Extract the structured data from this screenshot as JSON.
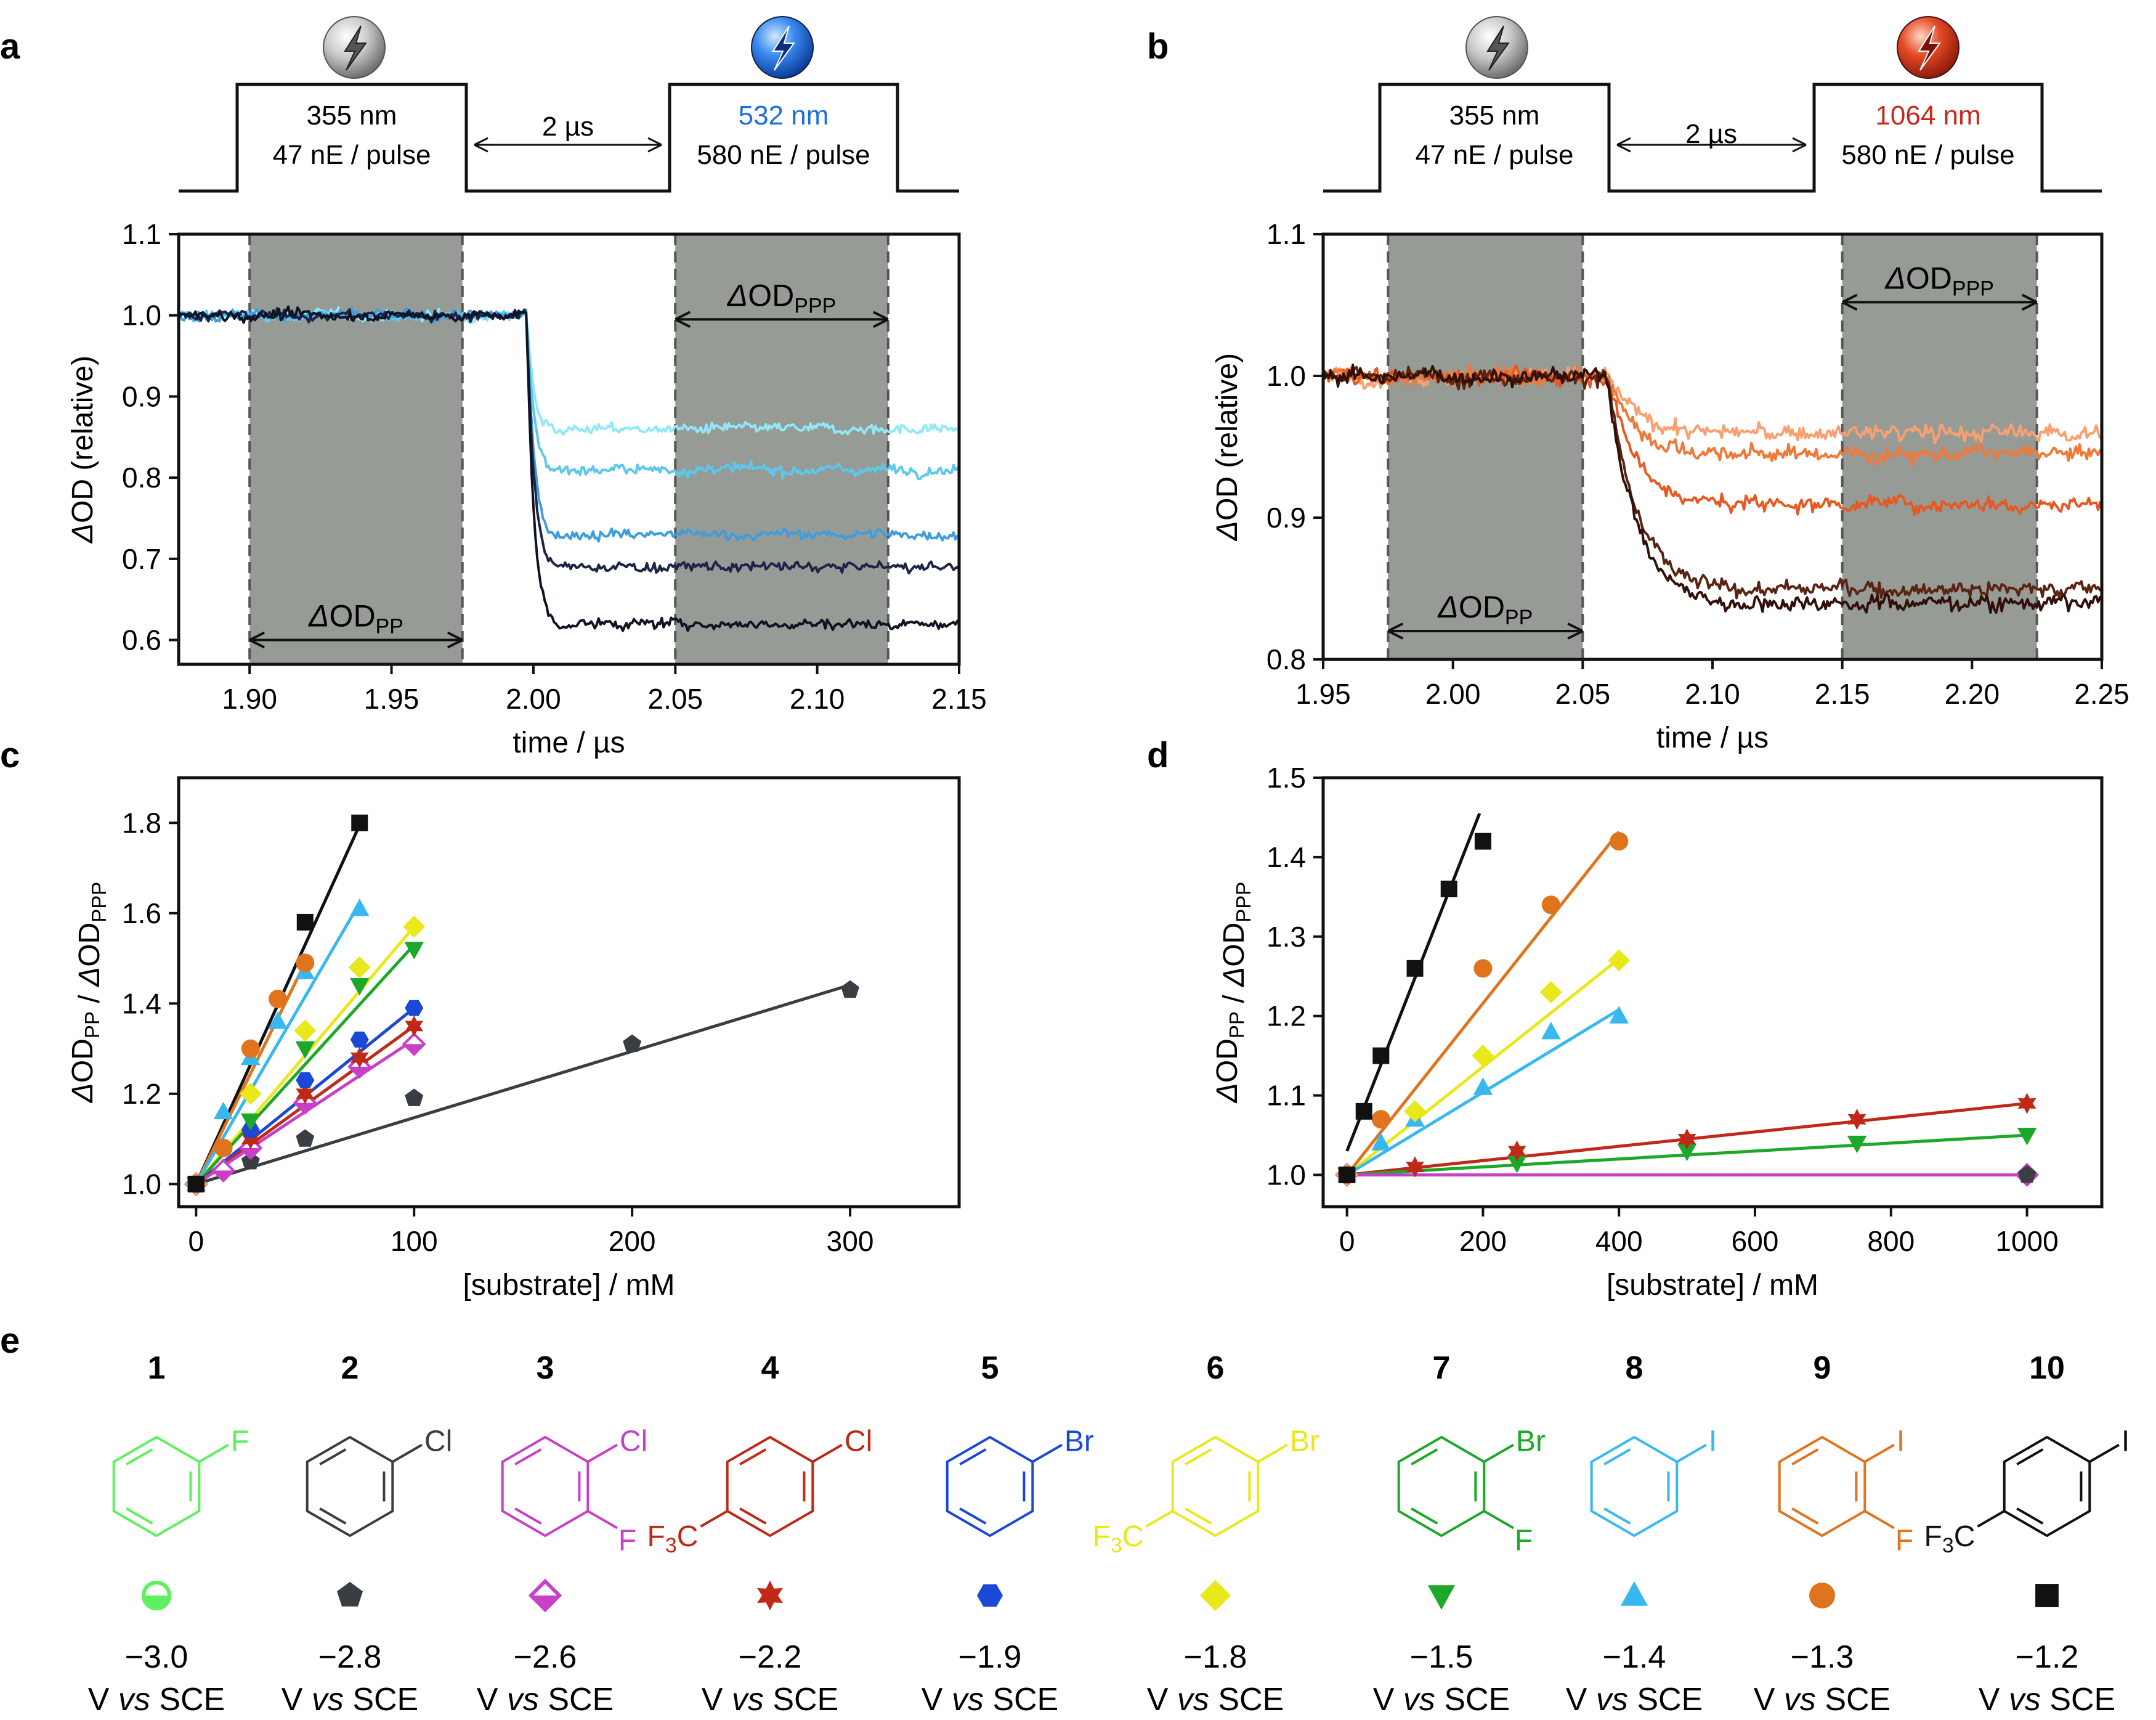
{
  "panel_letters": [
    "a",
    "b",
    "c",
    "d",
    "e"
  ],
  "pulse_a": {
    "pulse1_wl": "355 nm",
    "pulse1_energy": "47 nE / pulse",
    "delay": "2 µs",
    "pulse2_wl": "532 nm",
    "pulse2_energy": "580 nE / pulse",
    "pulse2_color": "#1d6fe0",
    "sphere2_color": "#1f6fe6"
  },
  "pulse_b": {
    "pulse1_wl": "355 nm",
    "pulse1_energy": "47 nE / pulse",
    "delay": "2 µs",
    "pulse2_wl": "1064 nm",
    "pulse2_energy": "580 nE / pulse",
    "pulse2_color": "#c8281c",
    "sphere2_color": "#d4301c"
  },
  "chart_data": [
    {
      "id": "a",
      "type": "line",
      "xlabel": "time / µs",
      "ylabel": "ΔOD (relative)",
      "xlim": [
        1.875,
        2.15
      ],
      "ylim": [
        0.57,
        1.1
      ],
      "xticks": [
        1.9,
        1.95,
        2.0,
        2.05,
        2.1,
        2.15
      ],
      "xtick_labels": [
        "1.90",
        "1.95",
        "2.00",
        "2.05",
        "2.10",
        "2.15"
      ],
      "yticks": [
        0.6,
        0.7,
        0.8,
        0.9,
        1.0,
        1.1
      ],
      "ytick_labels": [
        "0.6",
        "0.7",
        "0.8",
        "0.9",
        "1.0",
        "1.1"
      ],
      "shaded_regions": [
        [
          1.9,
          1.975
        ],
        [
          2.05,
          2.125
        ]
      ],
      "annotations": [
        "ΔOD_PP",
        "ΔOD_PPP"
      ],
      "drop_time": 2.0,
      "series": [
        {
          "name": "trace 1",
          "color": "#90e8f8",
          "level_after": 0.86
        },
        {
          "name": "trace 2",
          "color": "#5cc8ec",
          "level_after": 0.81
        },
        {
          "name": "trace 3",
          "color": "#3c9ee0",
          "level_after": 0.73
        },
        {
          "name": "trace 4",
          "color": "#1e2448",
          "level_after": 0.69
        },
        {
          "name": "trace 5",
          "color": "#0f1424",
          "level_after": 0.62
        }
      ]
    },
    {
      "id": "b",
      "type": "line",
      "xlabel": "time / µs",
      "ylabel": "ΔOD (relative)",
      "xlim": [
        1.95,
        2.25
      ],
      "ylim": [
        0.8,
        1.1
      ],
      "xticks": [
        1.95,
        2.0,
        2.05,
        2.1,
        2.15,
        2.2,
        2.25
      ],
      "xtick_labels": [
        "1.95",
        "2.00",
        "2.05",
        "2.10",
        "2.15",
        "2.20",
        "2.25"
      ],
      "yticks": [
        0.8,
        0.9,
        1.0,
        1.1
      ],
      "ytick_labels": [
        "0.8",
        "0.9",
        "1.0",
        "1.1"
      ],
      "shaded_regions": [
        [
          1.975,
          2.05
        ],
        [
          2.15,
          2.225
        ]
      ],
      "annotations": [
        "ΔOD_PP",
        "ΔOD_PPP"
      ],
      "drop_time": 2.07,
      "series": [
        {
          "name": "trace 1",
          "color": "#f8a070",
          "level_after": 0.96
        },
        {
          "name": "trace 2",
          "color": "#f07838",
          "level_after": 0.945
        },
        {
          "name": "trace 3",
          "color": "#e85820",
          "level_after": 0.91
        },
        {
          "name": "trace 4",
          "color": "#5a2412",
          "level_after": 0.85
        },
        {
          "name": "trace 5",
          "color": "#301008",
          "level_after": 0.84
        }
      ]
    },
    {
      "id": "c",
      "type": "scatter",
      "xlabel": "[substrate] / mM",
      "ylabel": "ΔOD_PP / ΔOD_PPP",
      "xlim": [
        -8,
        350
      ],
      "ylim": [
        0.95,
        1.9
      ],
      "xticks": [
        0,
        100,
        200,
        300
      ],
      "xtick_labels": [
        "0",
        "100",
        "200",
        "300"
      ],
      "yticks": [
        1.0,
        1.2,
        1.4,
        1.6,
        1.8
      ],
      "ytick_labels": [
        "1.0",
        "1.2",
        "1.4",
        "1.6",
        "1.8"
      ],
      "series": [
        {
          "name": "10",
          "color": "#111111",
          "marker": "square",
          "x": [
            0,
            50,
            75
          ],
          "y": [
            1.0,
            1.58,
            1.8
          ],
          "fit_slope": 0.0106
        },
        {
          "name": "9",
          "color": "#e0741c",
          "marker": "circle",
          "x": [
            0,
            12.5,
            25,
            37.5,
            50
          ],
          "y": [
            1.0,
            1.08,
            1.3,
            1.41,
            1.49
          ],
          "fit_slope": 0.0098
        },
        {
          "name": "8",
          "color": "#38b8f0",
          "marker": "triangle",
          "x": [
            0,
            12.5,
            25,
            37.5,
            50,
            75
          ],
          "y": [
            1.0,
            1.16,
            1.28,
            1.36,
            1.47,
            1.61
          ],
          "fit_slope": 0.0083
        },
        {
          "name": "6",
          "color": "#e8e81c",
          "marker": "diamond",
          "x": [
            0,
            25,
            50,
            75,
            100
          ],
          "y": [
            1.0,
            1.2,
            1.34,
            1.48,
            1.57
          ],
          "fit_slope": 0.0057
        },
        {
          "name": "7",
          "color": "#1ca828",
          "marker": "tri-down",
          "x": [
            0,
            25,
            50,
            75,
            100
          ],
          "y": [
            1.0,
            1.14,
            1.3,
            1.44,
            1.52
          ],
          "fit_slope": 0.0053
        },
        {
          "name": "5",
          "color": "#1c48d8",
          "marker": "hexagon",
          "x": [
            0,
            25,
            50,
            75,
            100
          ],
          "y": [
            1.0,
            1.12,
            1.23,
            1.32,
            1.39
          ],
          "fit_slope": 0.0039
        },
        {
          "name": "4",
          "color": "#c02818",
          "marker": "star",
          "x": [
            0,
            25,
            50,
            75,
            100
          ],
          "y": [
            1.0,
            1.1,
            1.2,
            1.28,
            1.35
          ],
          "fit_slope": 0.0035
        },
        {
          "name": "3",
          "color": "#c840c8",
          "marker": "diamond-half",
          "x": [
            0,
            12.5,
            25,
            50,
            75,
            100
          ],
          "y": [
            1.0,
            1.03,
            1.08,
            1.18,
            1.26,
            1.31
          ],
          "fit_slope": 0.0032
        },
        {
          "name": "2",
          "color": "#3a3e42",
          "marker": "pentagon",
          "x": [
            0,
            25,
            50,
            100,
            200,
            300
          ],
          "y": [
            1.0,
            1.05,
            1.1,
            1.19,
            1.31,
            1.43
          ],
          "fit_slope": 0.00147
        }
      ]
    },
    {
      "id": "d",
      "type": "scatter",
      "xlabel": "[substrate] / mM",
      "ylabel": "ΔOD_PP / ΔOD_PPP",
      "xlim": [
        -35,
        1110
      ],
      "ylim": [
        0.96,
        1.5
      ],
      "xticks": [
        0,
        200,
        400,
        600,
        800,
        1000
      ],
      "xtick_labels": [
        "0",
        "200",
        "400",
        "600",
        "800",
        "1000"
      ],
      "yticks": [
        1.0,
        1.1,
        1.2,
        1.3,
        1.4,
        1.5
      ],
      "ytick_labels": [
        "1.0",
        "1.1",
        "1.2",
        "1.3",
        "1.4",
        "1.5"
      ],
      "series": [
        {
          "name": "10",
          "color": "#111111",
          "marker": "square",
          "x": [
            0,
            25,
            50,
            100,
            150,
            200
          ],
          "y": [
            1.0,
            1.08,
            1.15,
            1.26,
            1.36,
            1.42
          ],
          "fit_slope": 0.00218,
          "fit_intercept": 1.03,
          "fit_xmax": 195
        },
        {
          "name": "9",
          "color": "#e0741c",
          "marker": "circle",
          "x": [
            0,
            50,
            200,
            300,
            400
          ],
          "y": [
            1.0,
            1.07,
            1.26,
            1.34,
            1.42
          ],
          "fit_slope": 0.00108,
          "fit_intercept": 1.0,
          "fit_xmax": 400
        },
        {
          "name": "6",
          "color": "#e8e81c",
          "marker": "diamond",
          "x": [
            0,
            100,
            200,
            300,
            400
          ],
          "y": [
            1.0,
            1.08,
            1.15,
            1.23,
            1.27
          ],
          "fit_slope": 0.00068,
          "fit_intercept": 1.0,
          "fit_xmax": 400
        },
        {
          "name": "8",
          "color": "#38b8f0",
          "marker": "triangle",
          "x": [
            0,
            50,
            100,
            200,
            300,
            400
          ],
          "y": [
            1.0,
            1.04,
            1.07,
            1.11,
            1.18,
            1.2
          ],
          "fit_slope": 0.00052,
          "fit_intercept": 1.0,
          "fit_xmax": 400
        },
        {
          "name": "4",
          "color": "#c02818",
          "marker": "star",
          "x": [
            0,
            100,
            250,
            500,
            750,
            1000
          ],
          "y": [
            1.0,
            1.01,
            1.03,
            1.045,
            1.07,
            1.09
          ],
          "fit_slope": 9e-05,
          "fit_intercept": 1.0,
          "fit_xmax": 1000
        },
        {
          "name": "7",
          "color": "#1ca828",
          "marker": "tri-down",
          "x": [
            0,
            250,
            500,
            750,
            1000
          ],
          "y": [
            1.0,
            1.015,
            1.03,
            1.04,
            1.05
          ],
          "fit_slope": 5e-05,
          "fit_intercept": 1.0,
          "fit_xmax": 1000
        },
        {
          "name": "2",
          "color": "#3a3e42",
          "marker": "pentagon",
          "x": [
            0,
            1000
          ],
          "y": [
            1.0,
            1.0
          ],
          "fit_slope": 0,
          "fit_intercept": 1.0,
          "fit_xmax": 1000
        },
        {
          "name": "3",
          "color": "#c840c8",
          "marker": "diamond-half",
          "x": [
            0,
            1000
          ],
          "y": [
            1.0,
            1.0
          ],
          "fit_slope": 0,
          "fit_intercept": 1.0,
          "fit_xmax": 1000
        }
      ]
    }
  ],
  "compounds": [
    {
      "num": "1",
      "labels": [
        "F"
      ],
      "color": "#5ef05e",
      "marker": "circle-half",
      "potential": "−3.0",
      "unit_prefix": "V ",
      "unit_vs": "vs",
      "unit_suffix": " SCE"
    },
    {
      "num": "2",
      "labels": [
        "Cl"
      ],
      "color": "#3a3e42",
      "marker": "pentagon",
      "potential": "−2.8",
      "unit_prefix": "V ",
      "unit_vs": "vs",
      "unit_suffix": " SCE"
    },
    {
      "num": "3",
      "labels": [
        "Cl",
        "F"
      ],
      "color": "#c840c8",
      "marker": "diamond-half",
      "potential": "−2.6",
      "unit_prefix": "V ",
      "unit_vs": "vs",
      "unit_suffix": " SCE"
    },
    {
      "num": "4",
      "labels": [
        "Cl",
        "F3C"
      ],
      "color": "#c02818",
      "marker": "star",
      "potential": "−2.2",
      "unit_prefix": "V ",
      "unit_vs": "vs",
      "unit_suffix": " SCE"
    },
    {
      "num": "5",
      "labels": [
        "Br"
      ],
      "color": "#1c48d8",
      "marker": "hexagon",
      "potential": "−1.9",
      "unit_prefix": "V ",
      "unit_vs": "vs",
      "unit_suffix": " SCE"
    },
    {
      "num": "6",
      "labels": [
        "Br",
        "F3C"
      ],
      "color": "#e8e81c",
      "marker": "diamond",
      "potential": "−1.8",
      "unit_prefix": "V ",
      "unit_vs": "vs",
      "unit_suffix": " SCE"
    },
    {
      "num": "7",
      "labels": [
        "Br",
        "F"
      ],
      "color": "#1ca828",
      "marker": "tri-down",
      "potential": "−1.5",
      "unit_prefix": "V ",
      "unit_vs": "vs",
      "unit_suffix": " SCE"
    },
    {
      "num": "8",
      "labels": [
        "I"
      ],
      "color": "#38b8f0",
      "marker": "triangle",
      "potential": "−1.4",
      "unit_prefix": "V ",
      "unit_vs": "vs",
      "unit_suffix": " SCE"
    },
    {
      "num": "9",
      "labels": [
        "I",
        "F"
      ],
      "color": "#e0741c",
      "marker": "circle",
      "potential": "−1.3",
      "unit_prefix": "V ",
      "unit_vs": "vs",
      "unit_suffix": " SCE"
    },
    {
      "num": "10",
      "labels": [
        "I",
        "F3C"
      ],
      "color": "#111111",
      "marker": "square",
      "potential": "−1.2",
      "unit_prefix": "V ",
      "unit_vs": "vs",
      "unit_suffix": " SCE"
    }
  ]
}
